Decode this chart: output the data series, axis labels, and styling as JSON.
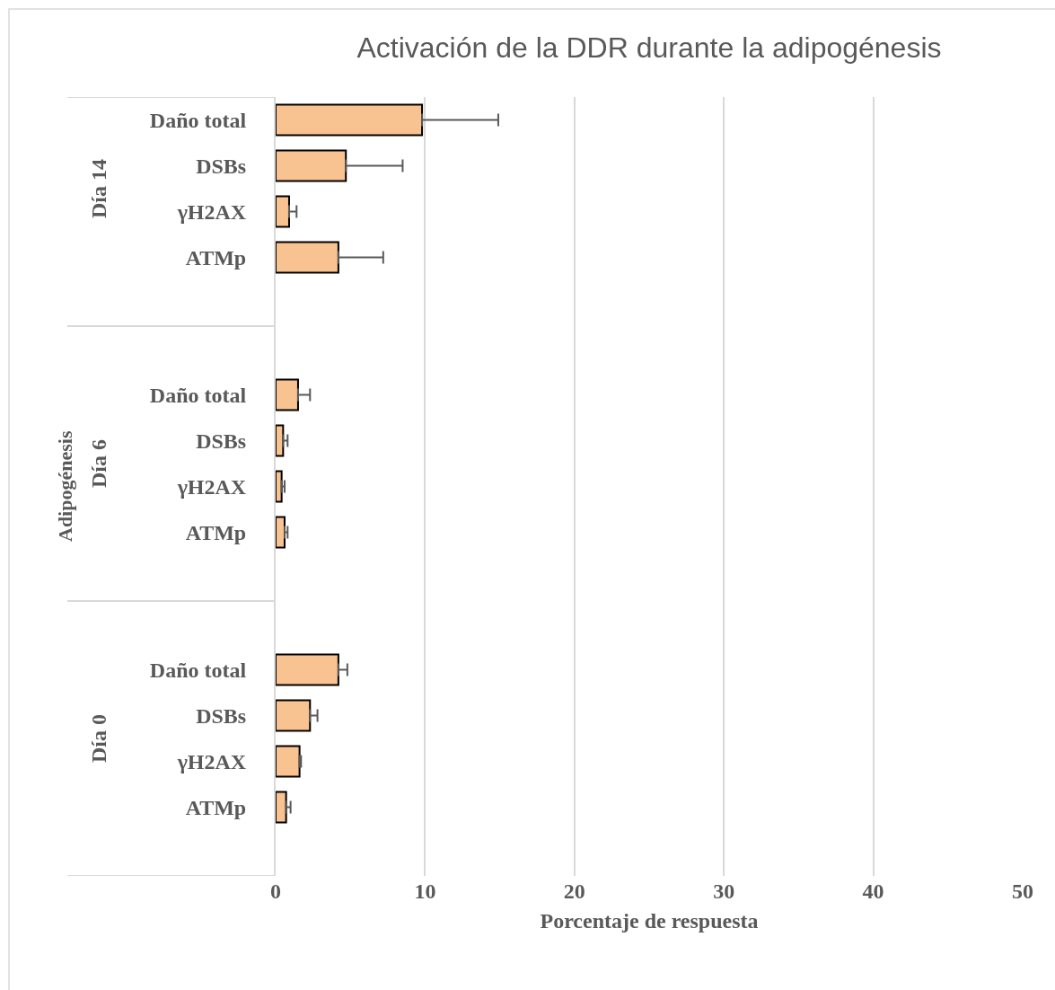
{
  "chart_data": {
    "type": "bar",
    "orientation": "horizontal",
    "title": "Activación de la DDR durante la adipogénesis",
    "xlabel": "Porcentaje de respuesta",
    "ylabel": "Adipogénesis",
    "annotations": [
      "Día 14",
      "Día 6",
      "Día 0"
    ],
    "categories": [
      "Daño total",
      "DSBs",
      "γH2AX",
      "ATMp",
      "Daño total",
      "DSBs",
      "γH2AX",
      "ATMp",
      "Daño total",
      "DSBs",
      "γH2AX",
      "ATMp"
    ],
    "values": [
      9.8,
      4.7,
      0.9,
      4.2,
      1.5,
      0.5,
      0.4,
      0.6,
      4.2,
      2.3,
      1.6,
      0.7
    ],
    "errors": [
      [
        9.8,
        14.9
      ],
      [
        4.7,
        8.5
      ],
      [
        0.9,
        1.4
      ],
      [
        4.2,
        7.2
      ],
      [
        1.5,
        2.3
      ],
      [
        0.5,
        0.8
      ],
      [
        0.4,
        0.6
      ],
      [
        0.6,
        0.8
      ],
      [
        4.2,
        4.8
      ],
      [
        2.3,
        2.8
      ],
      [
        1.6,
        1.7
      ],
      [
        0.7,
        1.0
      ]
    ],
    "color": "#f9c291",
    "xlim": [
      0,
      50
    ],
    "xticks": [
      0,
      10,
      20,
      30,
      40,
      50
    ],
    "grid": "x"
  }
}
